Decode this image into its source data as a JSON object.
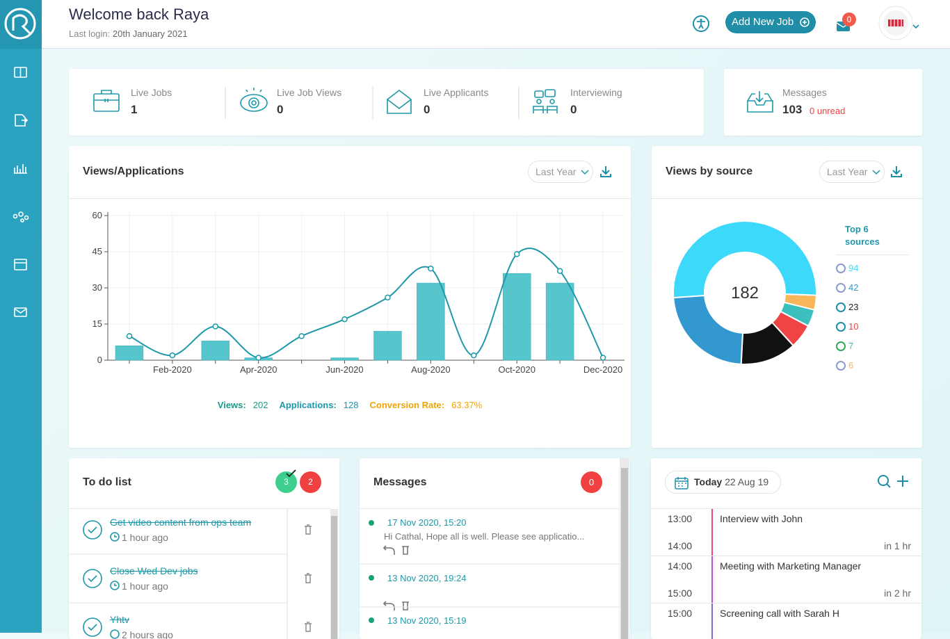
{
  "header": {
    "title": "Welcome back Raya",
    "last_login_label": "Last login:",
    "last_login": "20th January 2021",
    "add_button": "Add New Job",
    "mail_count": 0
  },
  "stats": [
    {
      "label": "Live Jobs",
      "value": 1
    },
    {
      "label": "Live Job Views",
      "value": 0
    },
    {
      "label": "Live Applicants",
      "value": 0
    },
    {
      "label": "Interviewing",
      "value": 0
    }
  ],
  "messages_summary": {
    "label": "Messages",
    "value": 103,
    "unread": "0 unread"
  },
  "chart_data": [
    {
      "type": "bar_line",
      "title": "Views/Applications",
      "filter": "Last Year",
      "categories": [
        null,
        "Feb-2020",
        null,
        "Apr-2020",
        null,
        "Jun-2020",
        null,
        "Aug-2020",
        null,
        "Oct-2020",
        null,
        "Dec-2020"
      ],
      "series": [
        {
          "type": "bar",
          "color": "#56c5cc",
          "values": [
            6,
            0,
            8,
            1,
            0,
            1,
            12,
            32,
            0,
            36,
            32,
            0
          ]
        },
        {
          "type": "line",
          "color": "#1d98a8",
          "values": [
            10,
            2,
            14,
            1,
            10,
            17,
            26,
            38,
            2,
            44,
            37,
            1
          ]
        }
      ],
      "ylim": [
        0,
        60
      ],
      "yticks": [
        0,
        15,
        30,
        45,
        60
      ],
      "grid": true,
      "summary": [
        {
          "label": "Views:",
          "value": 202,
          "color": "#1a9a8a"
        },
        {
          "label": "Applications:",
          "value": 128,
          "color": "#1d98a8"
        },
        {
          "label": "Conversion Rate:",
          "value": "63.37%",
          "color": "#f0a500"
        }
      ]
    },
    {
      "type": "donut",
      "title": "Views by source",
      "filter": "Last Year",
      "total": 182,
      "legend_title": "Top 6 sources",
      "values": [
        94,
        42,
        23,
        10,
        7,
        6
      ],
      "colors": [
        "#3dd9fb",
        "#3498d0",
        "#111111",
        "#f04444",
        "#3cbfbf",
        "#f9b55a"
      ]
    }
  ],
  "todo": {
    "title": "To do list",
    "done_count": 3,
    "open_count": 2,
    "items": [
      {
        "text": "Get video content from ops team",
        "time": "1 hour ago"
      },
      {
        "text": "Close Wed Dev jobs",
        "time": "1 hour ago"
      },
      {
        "text": "Yhtv",
        "time": "2 hours ago"
      }
    ]
  },
  "messages": {
    "title": "Messages",
    "count": 0,
    "items": [
      {
        "date": "17 Nov 2020, 15:20",
        "text": "Hi Cathal,  Hope all is well. Please see applicatio..."
      },
      {
        "date": "13 Nov 2020, 19:24"
      },
      {
        "date": "13 Nov 2020, 15:19"
      }
    ]
  },
  "calendar": {
    "today": "Today",
    "date": "22 Aug 19",
    "events": [
      {
        "start": "13:00",
        "end": "14:00",
        "title": "Interview with John",
        "relative": "in 1 hr",
        "color": "#e8467c"
      },
      {
        "start": "14:00",
        "end": "15:00",
        "title": "Meeting with Marketing Manager",
        "relative": "in 2 hr",
        "color": "#c34fd6"
      },
      {
        "start": "15:00",
        "title": "Screening call with Sarah H",
        "color": "#7a6ad8"
      }
    ]
  }
}
